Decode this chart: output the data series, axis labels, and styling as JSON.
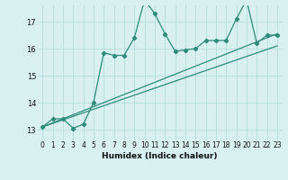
{
  "xlabel": "Humidex (Indice chaleur)",
  "bg_color": "#d8f0f0",
  "line_color": "#2e8b7a",
  "grid_color": "#b0d8d8",
  "xlim": [
    -0.5,
    23.5
  ],
  "ylim": [
    12.6,
    17.6
  ],
  "yticks": [
    13,
    14,
    15,
    16,
    17
  ],
  "xticks": [
    0,
    1,
    2,
    3,
    4,
    5,
    6,
    7,
    8,
    9,
    10,
    11,
    12,
    13,
    14,
    15,
    16,
    17,
    18,
    19,
    20,
    21,
    22,
    23
  ],
  "series1_x": [
    0,
    1,
    2,
    3,
    4,
    5,
    6,
    7,
    8,
    9,
    10,
    11,
    12,
    13,
    14,
    15,
    16,
    17,
    18,
    19,
    20,
    21,
    22,
    23
  ],
  "series1_y": [
    13.1,
    13.4,
    13.4,
    13.05,
    13.2,
    14.0,
    15.85,
    15.75,
    15.75,
    16.4,
    17.8,
    17.3,
    16.55,
    15.9,
    15.95,
    16.0,
    16.3,
    16.3,
    16.3,
    17.1,
    17.8,
    16.2,
    16.5,
    16.5
  ],
  "series2_x": [
    0,
    23
  ],
  "series2_y": [
    13.1,
    16.55
  ],
  "series3_x": [
    0,
    23
  ],
  "series3_y": [
    13.1,
    16.1
  ],
  "tick_fontsize": 5.5,
  "xlabel_fontsize": 6.5,
  "marker": "D",
  "markersize": 2.2
}
